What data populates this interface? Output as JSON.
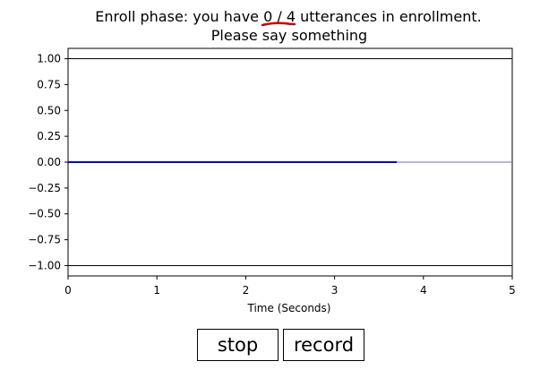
{
  "title": {
    "line1_prefix": "Enroll phase: you have ",
    "count": "0 / 4",
    "line1_suffix": " utterances in enrollment.",
    "line2": "Please say something",
    "underline_color": "#cc0000"
  },
  "chart_data": {
    "type": "line",
    "xlabel": "Time (Seconds)",
    "ylabel": "",
    "xlim": [
      0,
      5
    ],
    "ylim": [
      -1.1,
      1.1
    ],
    "x_ticks": [
      0,
      1,
      2,
      3,
      4,
      5
    ],
    "x_tick_labels": [
      "0",
      "1",
      "2",
      "3",
      "4",
      "5"
    ],
    "y_ticks": [
      1.0,
      0.75,
      0.5,
      0.25,
      0.0,
      -0.25,
      -0.5,
      -0.75,
      -1.0
    ],
    "y_tick_labels": [
      "1.00",
      "0.75",
      "0.50",
      "0.25",
      "0.00",
      "−0.25",
      "−0.50",
      "−0.75",
      "−1.00"
    ],
    "grid": false,
    "reference_lines": [
      {
        "y": 1.0,
        "color": "#000000"
      },
      {
        "y": -1.0,
        "color": "#000000"
      }
    ],
    "series": [
      {
        "x": [
          0,
          3.7
        ],
        "y": [
          0,
          0
        ],
        "color": "#0000cc",
        "style": "recorded"
      },
      {
        "x": [
          3.7,
          5
        ],
        "y": [
          0,
          0
        ],
        "color": "#6b6bdc",
        "style": "thin"
      }
    ]
  },
  "buttons": {
    "stop_label": "stop",
    "record_label": "record"
  }
}
